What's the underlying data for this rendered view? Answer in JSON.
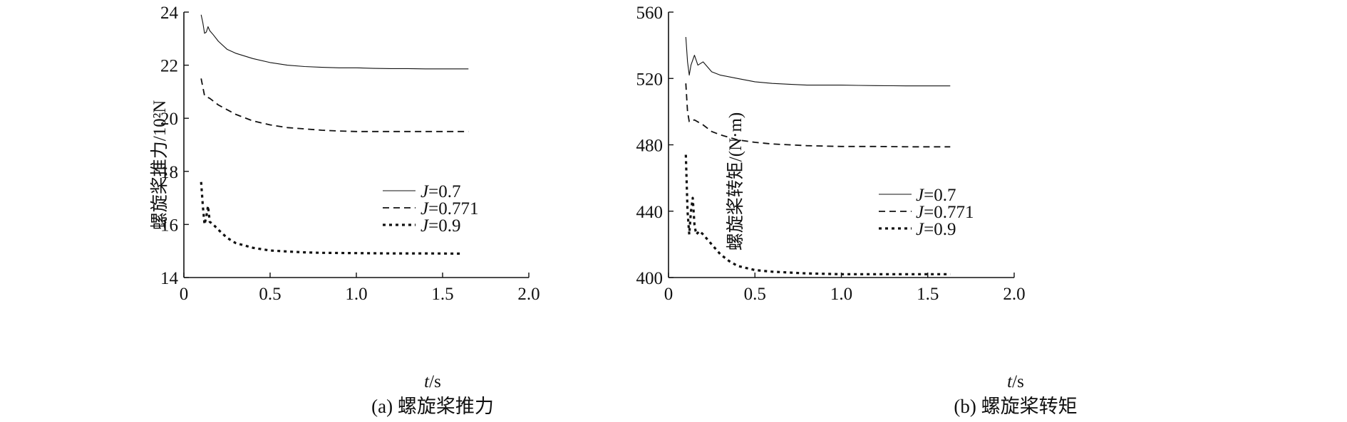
{
  "chart_data": [
    {
      "type": "line",
      "caption": "(a) 螺旋桨推力",
      "xlabel": "t/s",
      "ylabel": "螺旋桨推力/10²N",
      "xlim": [
        0,
        2.0
      ],
      "ylim": [
        14,
        24
      ],
      "xticks": [
        "0",
        "0.5",
        "1.0",
        "1.5",
        "2.0"
      ],
      "yticks": [
        "14",
        "16",
        "18",
        "20",
        "22",
        "24"
      ],
      "legend_position": "center-right",
      "series": [
        {
          "name": "J=0.7",
          "style": "solid",
          "x": [
            0.1,
            0.11,
            0.12,
            0.13,
            0.14,
            0.15,
            0.17,
            0.2,
            0.25,
            0.3,
            0.4,
            0.5,
            0.6,
            0.7,
            0.8,
            0.9,
            1.0,
            1.1,
            1.2,
            1.3,
            1.4,
            1.5,
            1.6,
            1.65
          ],
          "y": [
            23.9,
            23.6,
            23.2,
            23.25,
            23.45,
            23.3,
            23.15,
            22.9,
            22.6,
            22.45,
            22.25,
            22.1,
            22.0,
            21.95,
            21.92,
            21.9,
            21.9,
            21.88,
            21.87,
            21.87,
            21.86,
            21.86,
            21.86,
            21.86
          ]
        },
        {
          "name": "J=0.771",
          "style": "dashed",
          "x": [
            0.1,
            0.12,
            0.15,
            0.2,
            0.3,
            0.4,
            0.5,
            0.6,
            0.7,
            0.8,
            0.9,
            1.0,
            1.2,
            1.4,
            1.65
          ],
          "y": [
            21.5,
            20.85,
            20.75,
            20.5,
            20.15,
            19.9,
            19.75,
            19.65,
            19.6,
            19.55,
            19.52,
            19.5,
            19.5,
            19.5,
            19.5
          ]
        },
        {
          "name": "J=0.9",
          "style": "dotted",
          "x": [
            0.1,
            0.11,
            0.12,
            0.13,
            0.14,
            0.15,
            0.17,
            0.2,
            0.25,
            0.3,
            0.4,
            0.5,
            0.6,
            0.7,
            0.8,
            1.0,
            1.2,
            1.4,
            1.6
          ],
          "y": [
            17.6,
            16.7,
            16.0,
            16.3,
            16.7,
            16.1,
            16.0,
            15.8,
            15.5,
            15.3,
            15.12,
            15.02,
            14.98,
            14.95,
            14.93,
            14.92,
            14.91,
            14.91,
            14.9
          ]
        }
      ]
    },
    {
      "type": "line",
      "caption": "(b) 螺旋桨转矩",
      "xlabel": "t/s",
      "ylabel": "螺旋桨转矩/(N·m)",
      "xlim": [
        0,
        2.0
      ],
      "ylim": [
        400,
        560
      ],
      "xticks": [
        "0",
        "0.5",
        "1.0",
        "1.5",
        "2.0"
      ],
      "yticks": [
        "400",
        "440",
        "480",
        "520",
        "560"
      ],
      "legend_position": "center-right",
      "series": [
        {
          "name": "J=0.7",
          "style": "solid",
          "x": [
            0.1,
            0.11,
            0.12,
            0.13,
            0.15,
            0.17,
            0.2,
            0.25,
            0.3,
            0.4,
            0.5,
            0.6,
            0.7,
            0.8,
            0.9,
            1.0,
            1.1,
            1.2,
            1.3,
            1.4,
            1.5,
            1.63
          ],
          "y": [
            545,
            530,
            522,
            528,
            534,
            528,
            530,
            524,
            522,
            520,
            518,
            517,
            516.5,
            516,
            516,
            516,
            515.8,
            515.7,
            515.6,
            515.5,
            515.5,
            515.5
          ]
        },
        {
          "name": "J=0.771",
          "style": "dashed",
          "x": [
            0.1,
            0.11,
            0.12,
            0.15,
            0.2,
            0.25,
            0.3,
            0.4,
            0.5,
            0.6,
            0.7,
            0.8,
            1.0,
            1.2,
            1.4,
            1.63
          ],
          "y": [
            517,
            500,
            494,
            495,
            492,
            488,
            486,
            483,
            481.5,
            480.5,
            480,
            479.5,
            479,
            479,
            478.8,
            478.8
          ]
        },
        {
          "name": "J=0.9",
          "style": "dotted",
          "x": [
            0.1,
            0.11,
            0.12,
            0.13,
            0.14,
            0.15,
            0.16,
            0.18,
            0.2,
            0.25,
            0.3,
            0.35,
            0.4,
            0.5,
            0.6,
            0.7,
            0.8,
            1.0,
            1.2,
            1.4,
            1.63
          ],
          "y": [
            474,
            440,
            426,
            440,
            448,
            432,
            426,
            428,
            426,
            420,
            414,
            410,
            407,
            404.5,
            403.5,
            403,
            402.5,
            402,
            402,
            402,
            402
          ]
        }
      ]
    }
  ],
  "legend_prefix": "J",
  "legend_values": [
    "=0.7",
    "=0.771",
    "=0.9"
  ]
}
